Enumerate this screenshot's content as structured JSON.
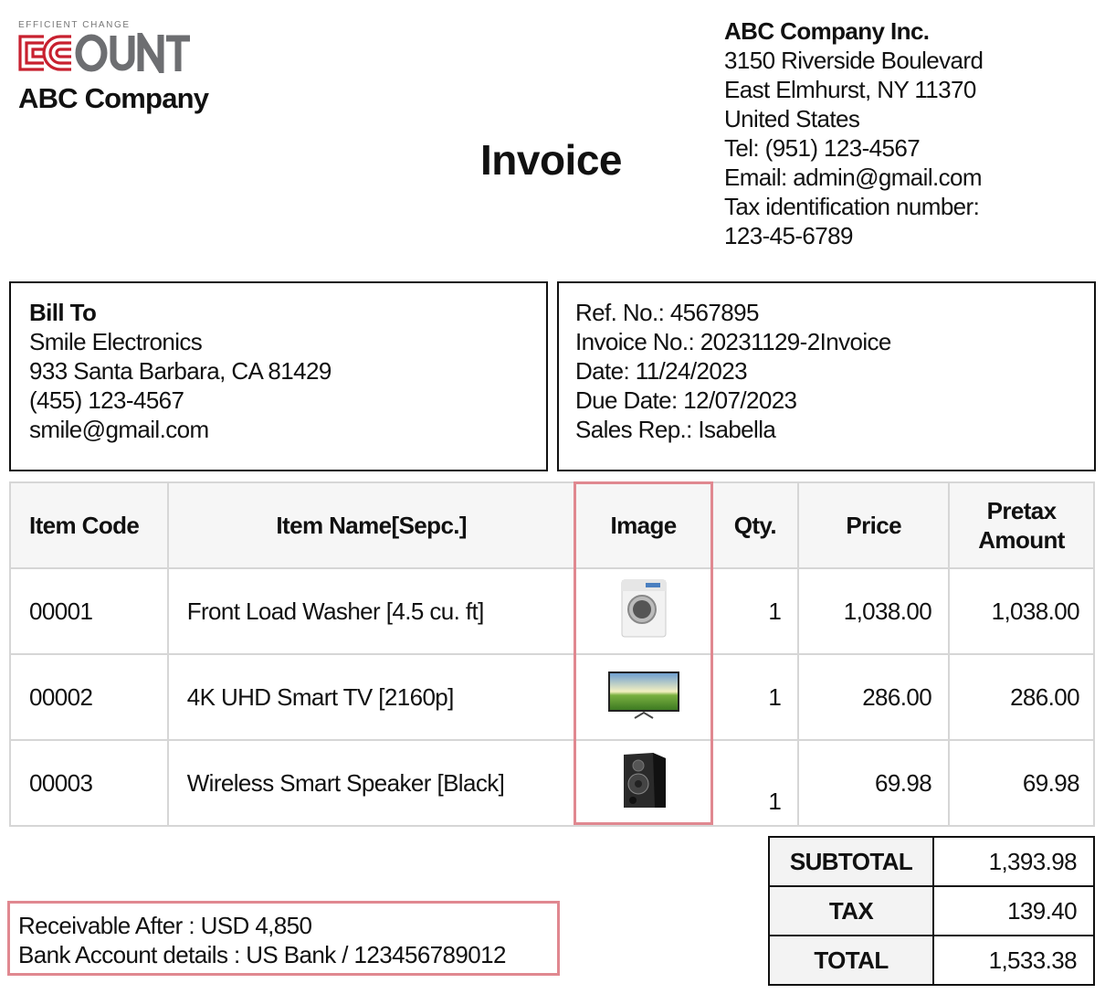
{
  "logo": {
    "tagline": "EFFICIENT CHANGE",
    "wordmark": "ECOUNT",
    "brand_red": "#c8202f",
    "brand_gray": "#6d6e71"
  },
  "company_name": "ABC Company",
  "title": "Invoice",
  "issuer": {
    "name": "ABC Company Inc.",
    "lines": [
      "3150 Riverside Boulevard",
      "East Elmhurst, NY 11370",
      "United States",
      "Tel: (951) 123-4567",
      "Email: admin@gmail.com",
      "Tax identification number:",
      "123-45-6789"
    ]
  },
  "bill_to": {
    "heading": "Bill To",
    "lines": [
      "Smile Electronics",
      "933 Santa Barbara, CA 81429",
      "(455) 123-4567",
      "smile@gmail.com"
    ]
  },
  "reference": {
    "lines": [
      "Ref. No.: 4567895",
      "Invoice No.: 20231129-2Invoice",
      "Date: 11/24/2023",
      "Due Date: 12/07/2023",
      "Sales Rep.: Isabella"
    ]
  },
  "table": {
    "headers": [
      "Item Code",
      "Item Name[Sepc.]",
      "Image",
      "Qty.",
      "Price",
      "Pretax Amount"
    ],
    "header_pretax_lines": [
      "Pretax",
      "Amount"
    ],
    "rows": [
      {
        "code": "00001",
        "name": "Front Load Washer [4.5 cu. ft]",
        "image": "washer-image",
        "qty": "1",
        "price": "1,038.00",
        "amount": "1,038.00"
      },
      {
        "code": "00002",
        "name": "4K UHD Smart TV [2160p]",
        "image": "tv-image",
        "qty": "1",
        "price": "286.00",
        "amount": "286.00"
      },
      {
        "code": "00003",
        "name": "Wireless Smart Speaker [Black]",
        "image": "speaker-image",
        "qty": "1",
        "price": "69.98",
        "amount": "69.98"
      }
    ]
  },
  "totals": [
    {
      "label": "SUBTOTAL",
      "value": "1,393.98"
    },
    {
      "label": "TAX",
      "value": "139.40"
    },
    {
      "label": "TOTAL",
      "value": "1,533.38"
    }
  ],
  "payment": {
    "lines": [
      "Receivable After : USD 4,850",
      "Bank Account details : US Bank / 123456789012"
    ]
  },
  "highlight_color": "#e08890"
}
